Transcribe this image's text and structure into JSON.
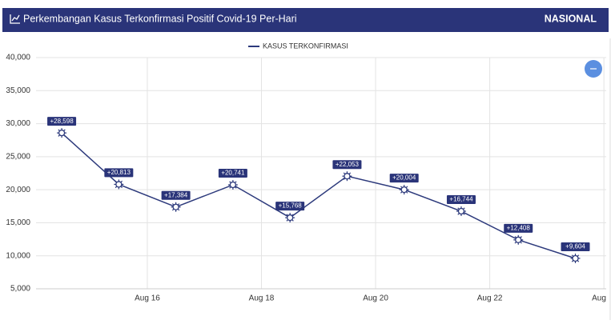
{
  "header": {
    "scope": "NASIONAL"
  },
  "chart_data": {
    "type": "line",
    "title": "Perkembangan Kasus Terkonfirmasi Positif Covid-19 Per-Hari",
    "x": [
      14.5,
      15.5,
      16.5,
      17.5,
      18.5,
      19.5,
      20.5,
      21.5,
      22.5,
      23.5
    ],
    "series": [
      {
        "name": "KASUS TERKONFIRMASI",
        "color": "#2d3a7c",
        "values": [
          28598,
          20813,
          17384,
          20741,
          15768,
          22053,
          20004,
          16744,
          12408,
          9604
        ],
        "value_labels": [
          "+28,598",
          "+20,813",
          "+17,384",
          "+20,741",
          "+15,768",
          "+22,053",
          "+20,004",
          "+16,744",
          "+12,408",
          "+9,604"
        ]
      }
    ],
    "xlim": [
      14.05,
      24.04
    ],
    "xticks": [
      {
        "value": 16,
        "label": "Aug 16"
      },
      {
        "value": 18,
        "label": "Aug 18"
      },
      {
        "value": 20,
        "label": "Aug 20"
      },
      {
        "value": 22,
        "label": "Aug 22"
      },
      {
        "value": 24,
        "label": "Aug"
      }
    ],
    "ylim": [
      5000,
      40000
    ],
    "yticks": [
      {
        "value": 5000,
        "label": "5,000"
      },
      {
        "value": 10000,
        "label": "10,000"
      },
      {
        "value": 15000,
        "label": "15,000"
      },
      {
        "value": 20000,
        "label": "20,000"
      },
      {
        "value": 25000,
        "label": "25,000"
      },
      {
        "value": 30000,
        "label": "30,000"
      },
      {
        "value": 35000,
        "label": "35,000"
      },
      {
        "value": 40000,
        "label": "40,000"
      }
    ],
    "grid": true
  }
}
